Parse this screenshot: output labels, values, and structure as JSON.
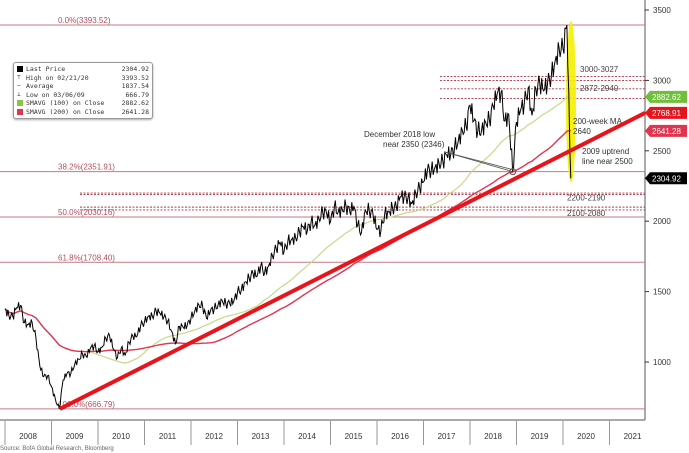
{
  "chart_data": {
    "type": "line",
    "title": "",
    "source": "Source: BofA Global Research, Bloomberg",
    "ylim": [
      600,
      3600
    ],
    "y_ticks": [
      1000,
      1500,
      2000,
      2500,
      3000,
      3500
    ],
    "x_ticks": [
      "2008",
      "2009",
      "2010",
      "2011",
      "2012",
      "2013",
      "2014",
      "2015",
      "2016",
      "2017",
      "2018",
      "2019",
      "2020",
      "2021"
    ],
    "grid": false,
    "series": [
      {
        "name": "Last Price",
        "color": "#000000",
        "start_year": 2008.0,
        "step": "monthly",
        "values": [
          1378,
          1330,
          1322,
          1385,
          1400,
          1280,
          1267,
          1282,
          1166,
          968,
          896,
          903,
          825,
          735,
          667,
          872,
          919,
          919,
          987,
          1020,
          1057,
          1036,
          1095,
          1115,
          1073,
          1104,
          1169,
          1186,
          1089,
          1030,
          1101,
          1049,
          1141,
          1183,
          1180,
          1257,
          1286,
          1327,
          1325,
          1363,
          1345,
          1320,
          1292,
          1218,
          1131,
          1253,
          1246,
          1257,
          1312,
          1365,
          1408,
          1397,
          1310,
          1362,
          1379,
          1406,
          1440,
          1412,
          1416,
          1426,
          1498,
          1514,
          1569,
          1597,
          1630,
          1606,
          1685,
          1632,
          1681,
          1756,
          1805,
          1848,
          1782,
          1859,
          1872,
          1883,
          1923,
          1960,
          1930,
          1996,
          1972,
          2018,
          2067,
          2058,
          1994,
          2104,
          2067,
          2085,
          2107,
          2063,
          2103,
          1972,
          1920,
          2079,
          2080,
          2043,
          1940,
          1932,
          2059,
          2065,
          2096,
          2098,
          2173,
          2170,
          2168,
          2126,
          2198,
          2238,
          2278,
          2363,
          2362,
          2384,
          2411,
          2423,
          2470,
          2471,
          2519,
          2575,
          2647,
          2673,
          2823,
          2713,
          2640,
          2648,
          2705,
          2718,
          2816,
          2901,
          2913,
          2711,
          2760,
          2351,
          2704,
          2784,
          2834,
          2945,
          2752,
          2941,
          2980,
          2926,
          2976,
          3037,
          3140,
          3230,
          3225,
          3393,
          2305
        ]
      },
      {
        "name": "SMAVG (100) on Close",
        "color": "#c8d88a",
        "window_months": 23
      },
      {
        "name": "SMAVG (200) on Close",
        "color": "#e0344f",
        "window_months": 46
      }
    ],
    "legend": {
      "placement": "top-left",
      "items": [
        {
          "label": "Last Price",
          "value": "2304.92",
          "swatch": "#000000"
        },
        {
          "label": "High on 02/21/20",
          "value": "3393.52",
          "swatch": "high"
        },
        {
          "label": "Average",
          "value": "1837.54",
          "swatch": "avg"
        },
        {
          "label": "Low on 03/06/09",
          "value": "666.79",
          "swatch": "low"
        },
        {
          "label": "SMAVG (100) on Close",
          "value": "2882.62",
          "swatch": "#8cc63f"
        },
        {
          "label": "SMAVG (200) on Close",
          "value": "2641.28",
          "swatch": "#e0344f"
        }
      ]
    },
    "fib_levels": [
      {
        "label": "0.0%(3393.52)",
        "value": 3393.52
      },
      {
        "label": "38.2%(2351.91)",
        "value": 2351.91
      },
      {
        "label": "50.0%(2030.16)",
        "value": 2030.16
      },
      {
        "label": "61.8%(1708.40)",
        "value": 1708.4
      },
      {
        "label": "100.0%(666.79)",
        "value": 666.79
      }
    ],
    "dotted_levels": [
      3027,
      3000,
      2940,
      2872,
      2200,
      2190,
      2100,
      2080
    ],
    "zone_labels": [
      {
        "text": "3000-3027",
        "value": 3040
      },
      {
        "text": "2872-2940",
        "value": 2905
      },
      {
        "text": "2200-2190",
        "value": 2170
      },
      {
        "text": "2100-2080",
        "value": 2060
      }
    ],
    "annotations": [
      {
        "text": "December 2018 low",
        "value": 2380
      },
      {
        "text": "near 2350 (2346)",
        "value": 2380
      },
      {
        "text": "200-week MA",
        "value": 2640
      },
      {
        "text": "2640",
        "value": 2640
      },
      {
        "text": "2009 uptrend",
        "value": 2500
      },
      {
        "text": "line near 2500",
        "value": 2500
      }
    ],
    "trendline": {
      "from": [
        2009.18,
        666.79
      ],
      "to": [
        2020.75,
        2768.91
      ],
      "color": "#e8141c"
    },
    "highlight": {
      "year": 2020.15,
      "from": 3393.52,
      "to": 2304.92,
      "color": "#f5f000"
    },
    "right_tags": [
      {
        "value": 2882.62,
        "label": "2882.62",
        "color": "#6fbf3a"
      },
      {
        "value": 2768.91,
        "label": "2768.91",
        "color": "#e8141c"
      },
      {
        "value": 2641.28,
        "label": "2641.28",
        "color": "#e0344f"
      },
      {
        "value": 2304.92,
        "label": "2304.92",
        "color": "#000000"
      }
    ]
  }
}
